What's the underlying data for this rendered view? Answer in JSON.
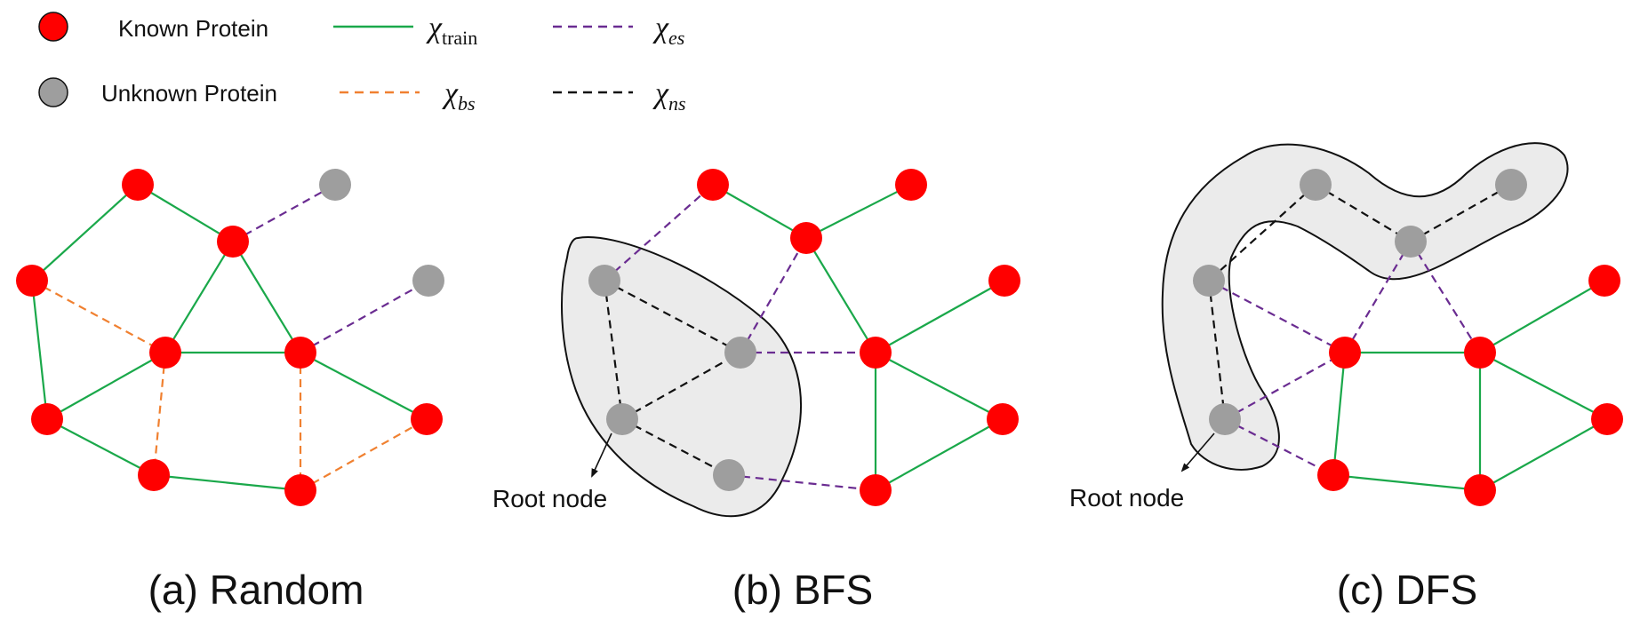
{
  "colors": {
    "known": "#ff0000",
    "unknown": "#9e9e9e",
    "train": "#1aa84a",
    "bs": "#f08030",
    "es": "#6a2c91",
    "ns": "#111111",
    "hull_fill": "#ebebeb",
    "hull_stroke": "#111111"
  },
  "legend": {
    "known_label": "Known Protein",
    "unknown_label": "Unknown Protein",
    "train_sym": "χ",
    "train_sub": "train",
    "bs_sym": "χ",
    "bs_sub": "bs",
    "es_sym": "χ",
    "es_sub": "es",
    "ns_sym": "χ",
    "ns_sub": "ns"
  },
  "panels": {
    "a": {
      "caption": "(a) Random"
    },
    "b": {
      "caption": "(b) BFS",
      "root_label": "Root node"
    },
    "c": {
      "caption": "(c) DFS",
      "root_label": "Root node"
    }
  }
}
